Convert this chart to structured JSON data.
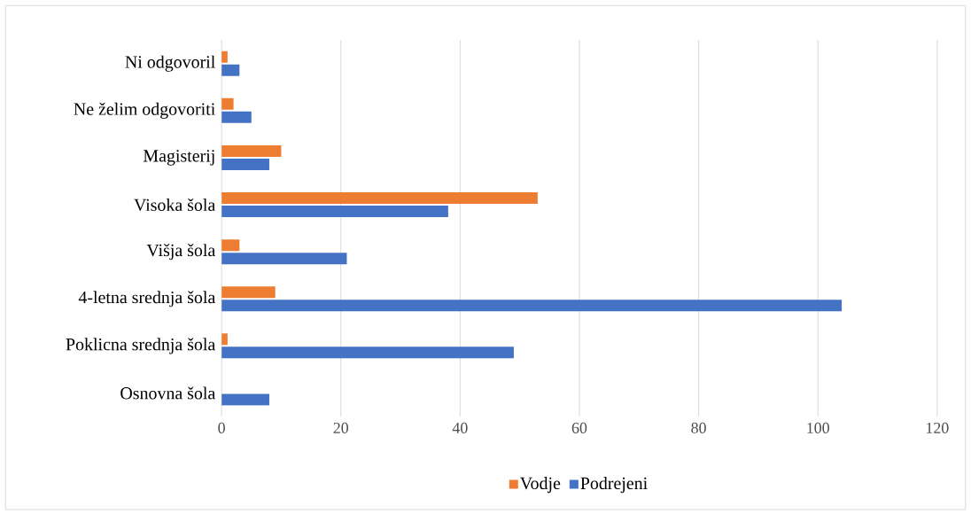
{
  "chart_data": {
    "type": "bar",
    "orientation": "horizontal",
    "categories": [
      "Ni odgovoril",
      "Ne želim odgovoriti",
      "Magisterij",
      "Visoka šola",
      "Višja šola",
      "4-letna srednja šola",
      "Poklicna srednja šola",
      "Osnovna šola"
    ],
    "series": [
      {
        "name": "Vodje",
        "color": "#ed7d31",
        "values": [
          1,
          2,
          10,
          53,
          3,
          9,
          1,
          0
        ]
      },
      {
        "name": "Podrejeni",
        "color": "#4472c4",
        "values": [
          3,
          5,
          8,
          38,
          21,
          104,
          49,
          8
        ]
      }
    ],
    "xlim": [
      0,
      120
    ],
    "xticks": [
      0,
      20,
      40,
      60,
      80,
      100,
      120
    ],
    "grid": "x",
    "legend": "bottom"
  }
}
